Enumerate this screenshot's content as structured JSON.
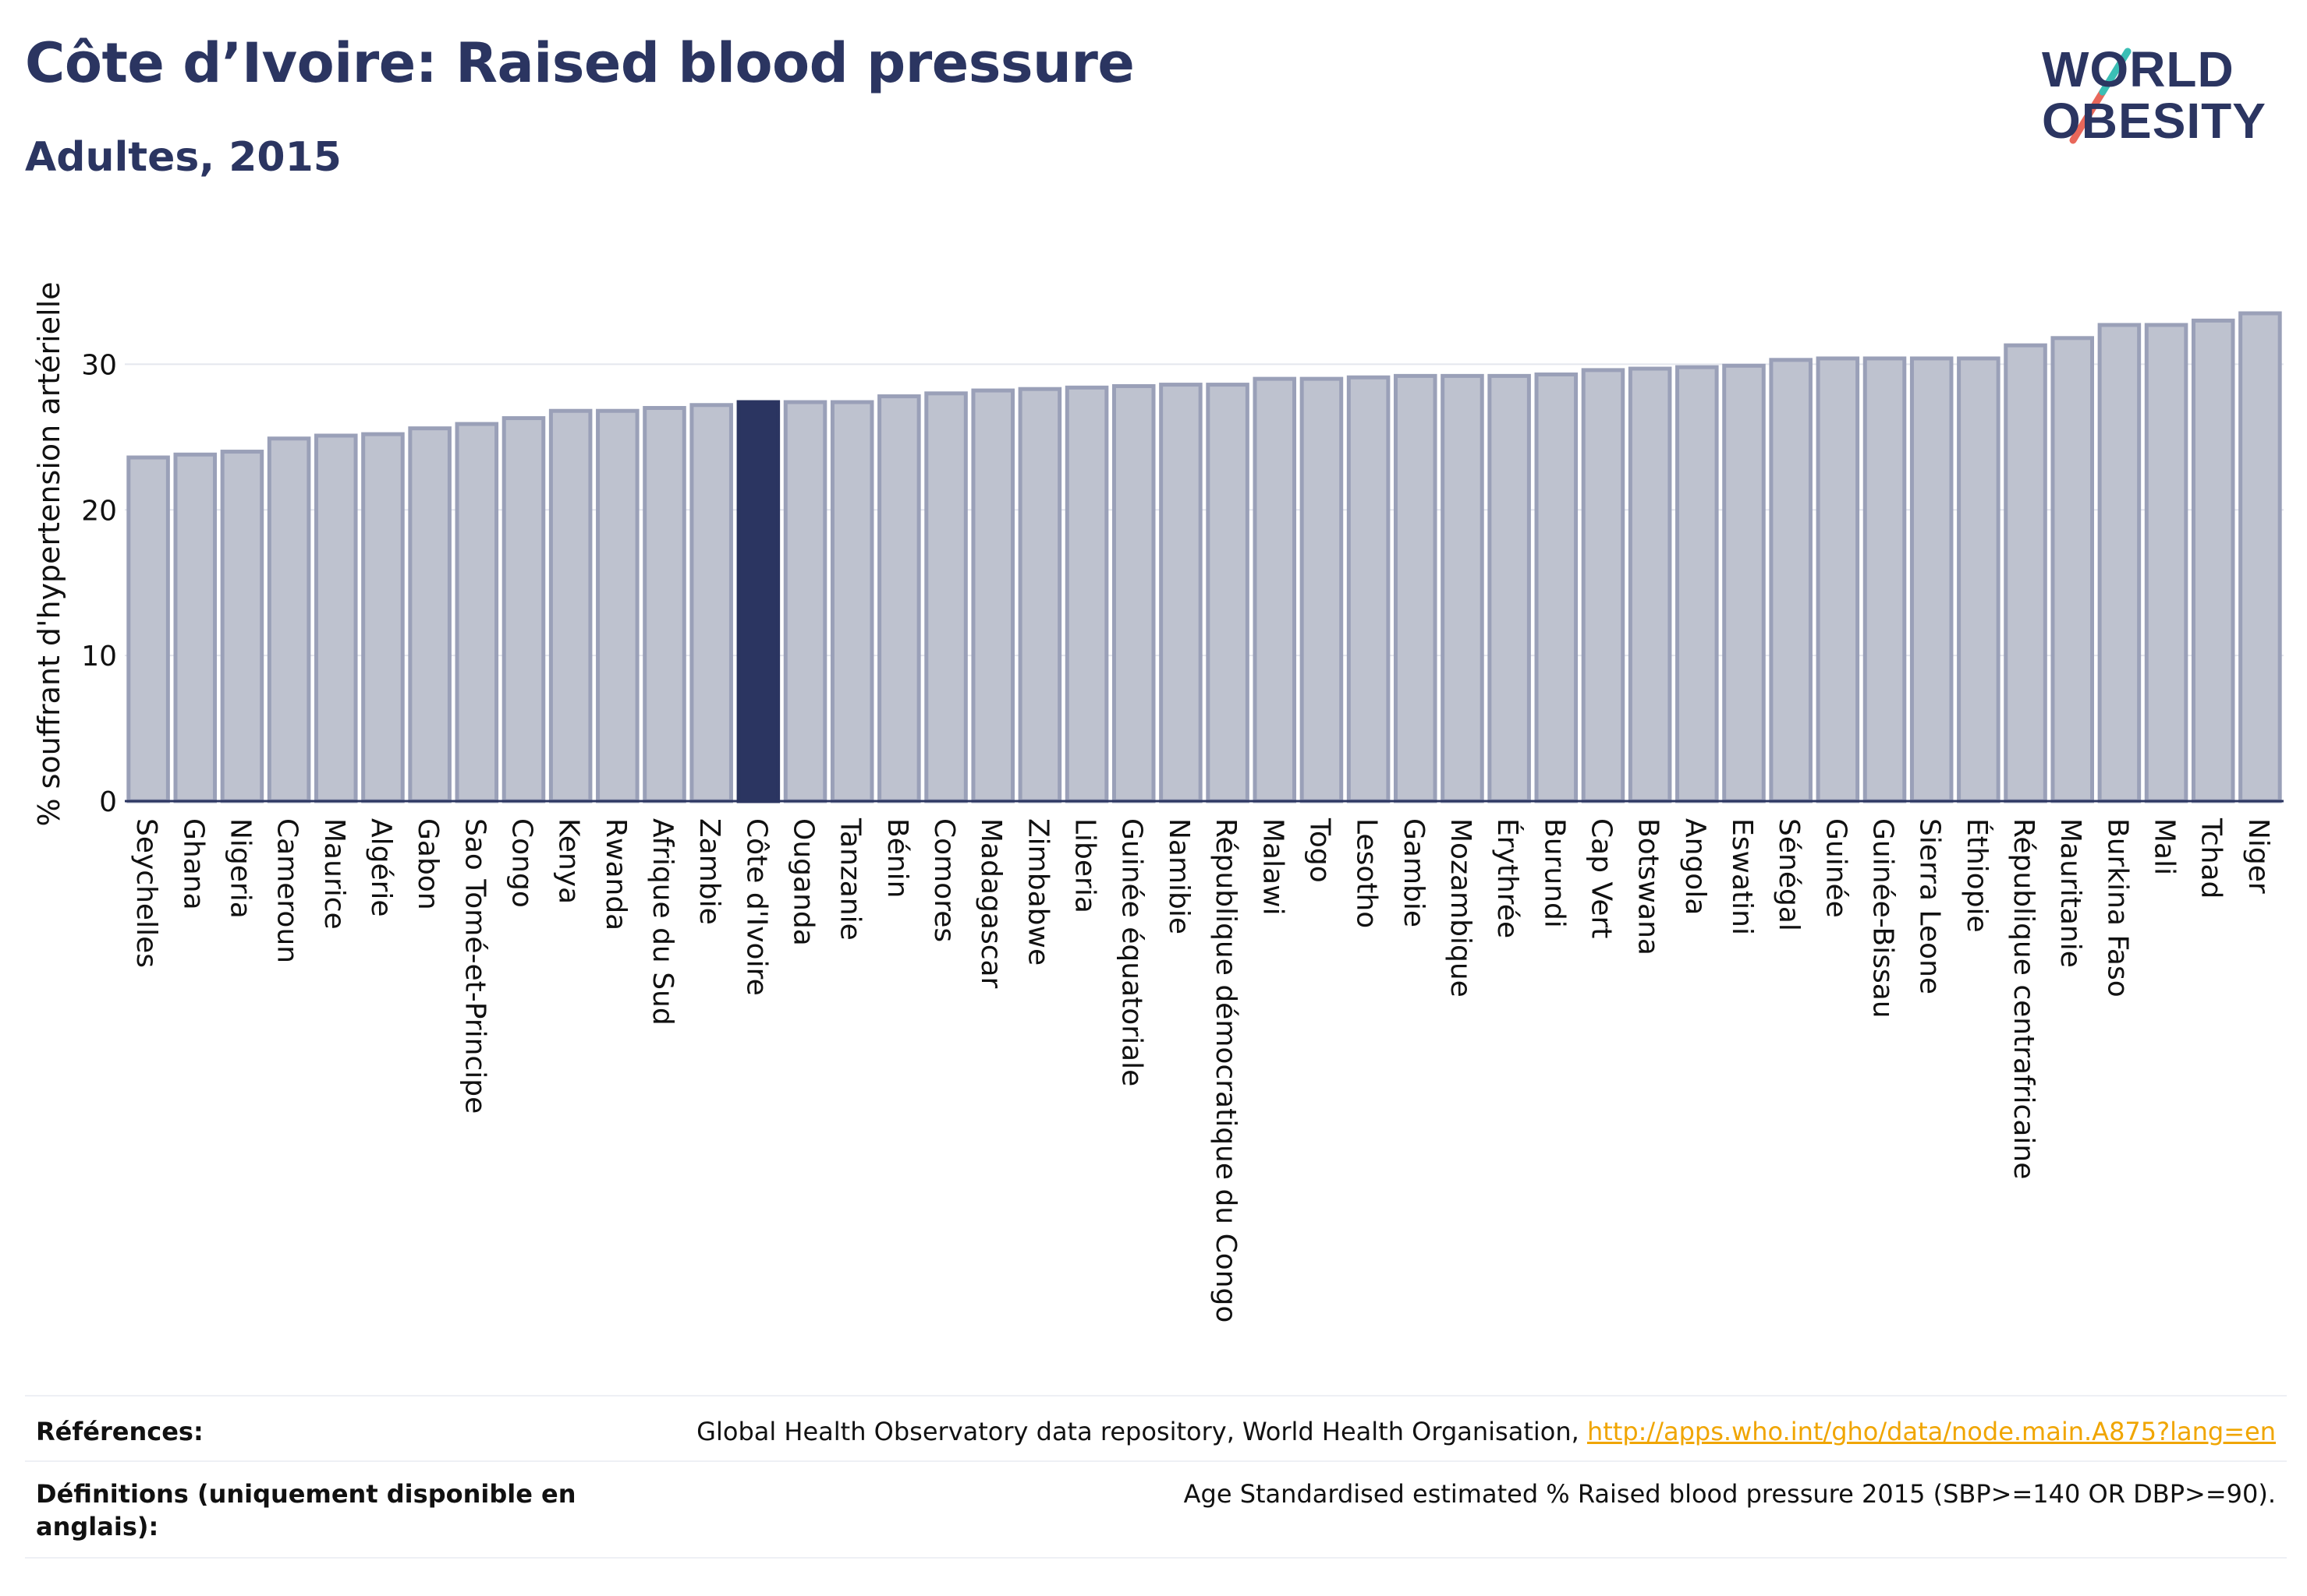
{
  "title": "Côte d’Ivoire: Raised blood pressure",
  "subtitle": "Adultes, 2015",
  "logo": {
    "line1": "WORLD",
    "line2": "OBESITY",
    "colors": [
      "#2b3561",
      "#3bbfb5",
      "#e8675a"
    ]
  },
  "chart_data": {
    "type": "bar",
    "ylabel": "% souffrant d'hypertension artérielle",
    "ylim": [
      0,
      35
    ],
    "yticks": [
      0,
      10,
      20,
      30
    ],
    "grid": true,
    "highlight": "Côte d'Ivoire",
    "categories": [
      "Seychelles",
      "Ghana",
      "Nigeria",
      "Cameroun",
      "Maurice",
      "Algérie",
      "Gabon",
      "Sao Tomé-et-Principe",
      "Congo",
      "Kenya",
      "Rwanda",
      "Afrique du Sud",
      "Zambie",
      "Côte d'Ivoire",
      "Ouganda",
      "Tanzanie",
      "Bénin",
      "Comores",
      "Madagascar",
      "Zimbabwe",
      "Liberia",
      "Guinée équatoriale",
      "Namibie",
      "République démocratique du Congo",
      "Malawi",
      "Togo",
      "Lesotho",
      "Gambie",
      "Mozambique",
      "Érythrée",
      "Burundi",
      "Cap Vert",
      "Botswana",
      "Angola",
      "Eswatini",
      "Sénégal",
      "Guinée",
      "Guinée-Bissau",
      "Sierra Leone",
      "Éthiopie",
      "République centrafricaine",
      "Mauritanie",
      "Burkina Faso",
      "Mali",
      "Tchad",
      "Niger"
    ],
    "values": [
      23.6,
      23.8,
      24.0,
      24.9,
      25.1,
      25.2,
      25.6,
      25.9,
      26.3,
      26.8,
      26.8,
      27.0,
      27.2,
      27.4,
      27.4,
      27.4,
      27.8,
      28.0,
      28.2,
      28.3,
      28.4,
      28.5,
      28.6,
      28.6,
      29.0,
      29.0,
      29.1,
      29.2,
      29.2,
      29.2,
      29.3,
      29.6,
      29.7,
      29.8,
      29.9,
      30.3,
      30.4,
      30.4,
      30.4,
      30.4,
      31.3,
      31.8,
      32.7,
      32.7,
      33.0,
      33.5
    ],
    "colors": {
      "bar": "#bec2cf",
      "bar_edge": "#9aa0b8",
      "highlight": "#2b3561",
      "axis": "#2b3561",
      "grid": "#e4e6ee"
    }
  },
  "footer": {
    "references_label": "Références:",
    "references_text": "Global Health Observatory data repository, World Health Organisation, ",
    "references_link": "http://apps.who.int/gho/data/node.main.A875?lang=en",
    "definitions_label_1": "Définitions (uniquement disponible en",
    "definitions_label_2": "anglais):",
    "definitions_text": "Age Standardised estimated % Raised blood pressure 2015 (SBP>=140 OR DBP>=90)."
  }
}
